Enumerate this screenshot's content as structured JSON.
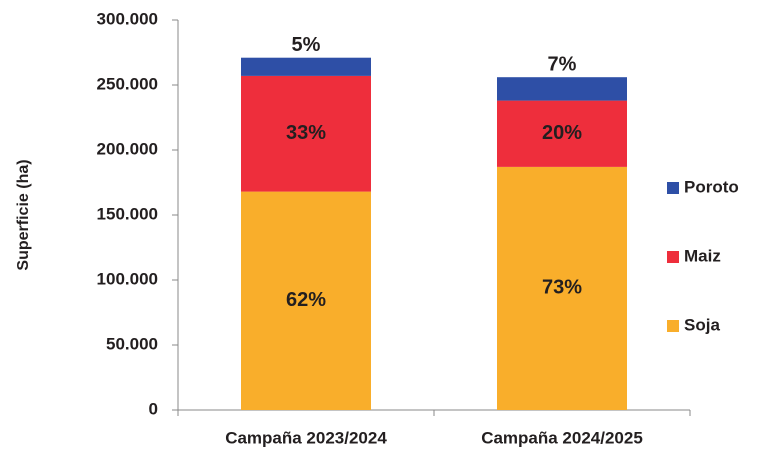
{
  "chart_data": {
    "type": "stacked_bar",
    "y_label": "Superficie (ha)",
    "categories": [
      "Campaña 2023/2024",
      "Campaña 2024/2025"
    ],
    "series": [
      {
        "name": "Soja",
        "color": "#f9ae2b",
        "values": [
          168000,
          187000
        ],
        "value_labels": [
          "62%",
          "73%"
        ]
      },
      {
        "name": "Maiz",
        "color": "#ee2e3c",
        "values": [
          89000,
          51000
        ],
        "value_labels": [
          "33%",
          "20%"
        ]
      },
      {
        "name": "Poroto",
        "color": "#2e4fa6",
        "values": [
          14000,
          18000
        ],
        "value_labels": [
          "5%",
          "7%"
        ]
      }
    ],
    "ylim": [
      0,
      300000
    ],
    "yticks": [
      0,
      {
        "value": 50000,
        "label": "50.000"
      },
      {
        "value": 100000,
        "label": "100.000"
      },
      {
        "value": 150000,
        "label": "150.000"
      },
      {
        "value": 200000,
        "label": "200.000"
      },
      {
        "value": 250000,
        "label": "250.000"
      },
      {
        "value": 300000,
        "label": "300.000"
      }
    ],
    "legend": "right"
  }
}
